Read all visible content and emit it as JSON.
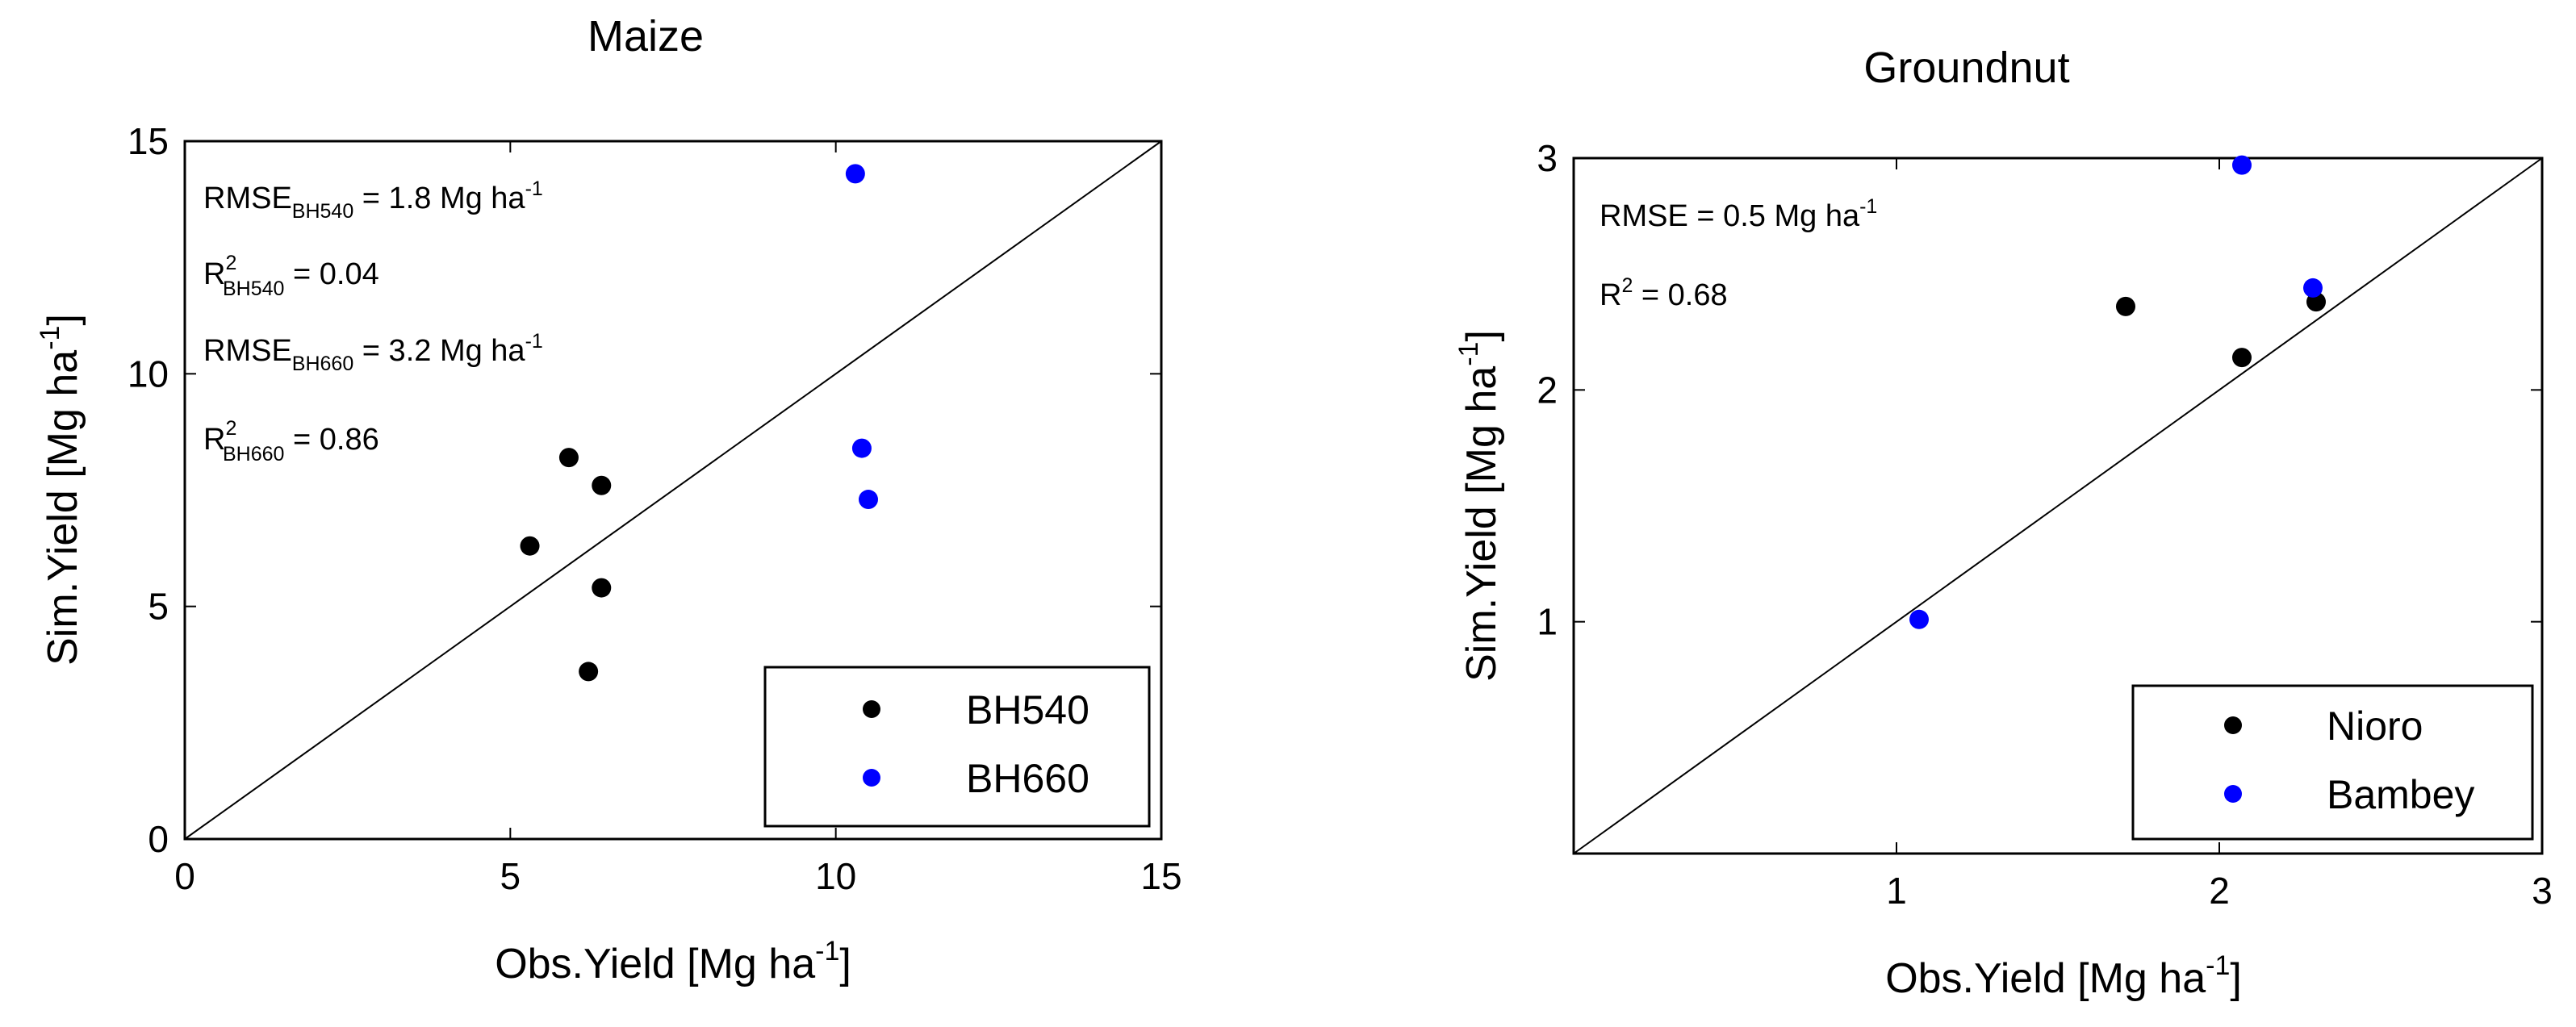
{
  "chart_data": [
    {
      "type": "scatter",
      "title": "Maize",
      "xlabel": "Obs.Yield [Mg ha",
      "xlabel_sup": "-1",
      "xlabel_end": "]",
      "ylabel": "Sim.Yield [Mg ha",
      "ylabel_sup": "-1",
      "ylabel_end": "]",
      "xlim": [
        0,
        15
      ],
      "ylim": [
        0,
        15
      ],
      "xticks": [
        0,
        5,
        10,
        15
      ],
      "yticks": [
        0,
        5,
        10,
        15
      ],
      "one_to_one_line": true,
      "grid": false,
      "legend_position": "bottom-right",
      "series": [
        {
          "name": "BH540",
          "color": "#000000",
          "points": [
            [
              5.3,
              6.3
            ],
            [
              5.9,
              8.2
            ],
            [
              6.4,
              7.6
            ],
            [
              6.4,
              5.4
            ],
            [
              6.2,
              3.6
            ]
          ]
        },
        {
          "name": "BH660",
          "color": "#0000ff",
          "points": [
            [
              10.3,
              14.3
            ],
            [
              10.4,
              8.4
            ],
            [
              10.5,
              7.3
            ]
          ]
        }
      ],
      "annotations": [
        {
          "base": "RMSE",
          "sub": "BH540",
          "rest": " = 1.8 Mg ha",
          "sup_end": "-1"
        },
        {
          "base": "R",
          "sup": "2",
          "sub": "BH540",
          "rest": " = 0.04"
        },
        {
          "base": "RMSE",
          "sub": "BH660",
          "rest": " = 3.2 Mg ha",
          "sup_end": "-1"
        },
        {
          "base": "R",
          "sup": "2",
          "sub": "BH660",
          "rest": " = 0.86"
        }
      ]
    },
    {
      "type": "scatter",
      "title": "Groundnut",
      "xlabel": "Obs.Yield [Mg ha",
      "xlabel_sup": "-1",
      "xlabel_end": "]",
      "ylabel": "Sim.Yield [Mg ha",
      "ylabel_sup": "-1",
      "ylabel_end": "]",
      "xlim": [
        0,
        3
      ],
      "ylim": [
        0,
        3
      ],
      "xticks": [
        1,
        2,
        3
      ],
      "yticks": [
        1,
        2,
        3
      ],
      "one_to_one_line": true,
      "grid": false,
      "legend_position": "bottom-right",
      "series": [
        {
          "name": "Nioro",
          "color": "#000000",
          "points": [
            [
              1.71,
              2.36
            ],
            [
              2.07,
              2.14
            ],
            [
              2.3,
              2.38
            ]
          ]
        },
        {
          "name": "Bambey",
          "color": "#0000ff",
          "points": [
            [
              2.07,
              2.97
            ],
            [
              2.29,
              2.44
            ],
            [
              1.07,
              1.01
            ]
          ]
        }
      ],
      "annotations": [
        {
          "base": "RMSE",
          "rest": " = 0.5 Mg ha",
          "sup_end": "-1"
        },
        {
          "base": "R",
          "sup": "2",
          "rest": " = 0.68"
        }
      ]
    }
  ]
}
